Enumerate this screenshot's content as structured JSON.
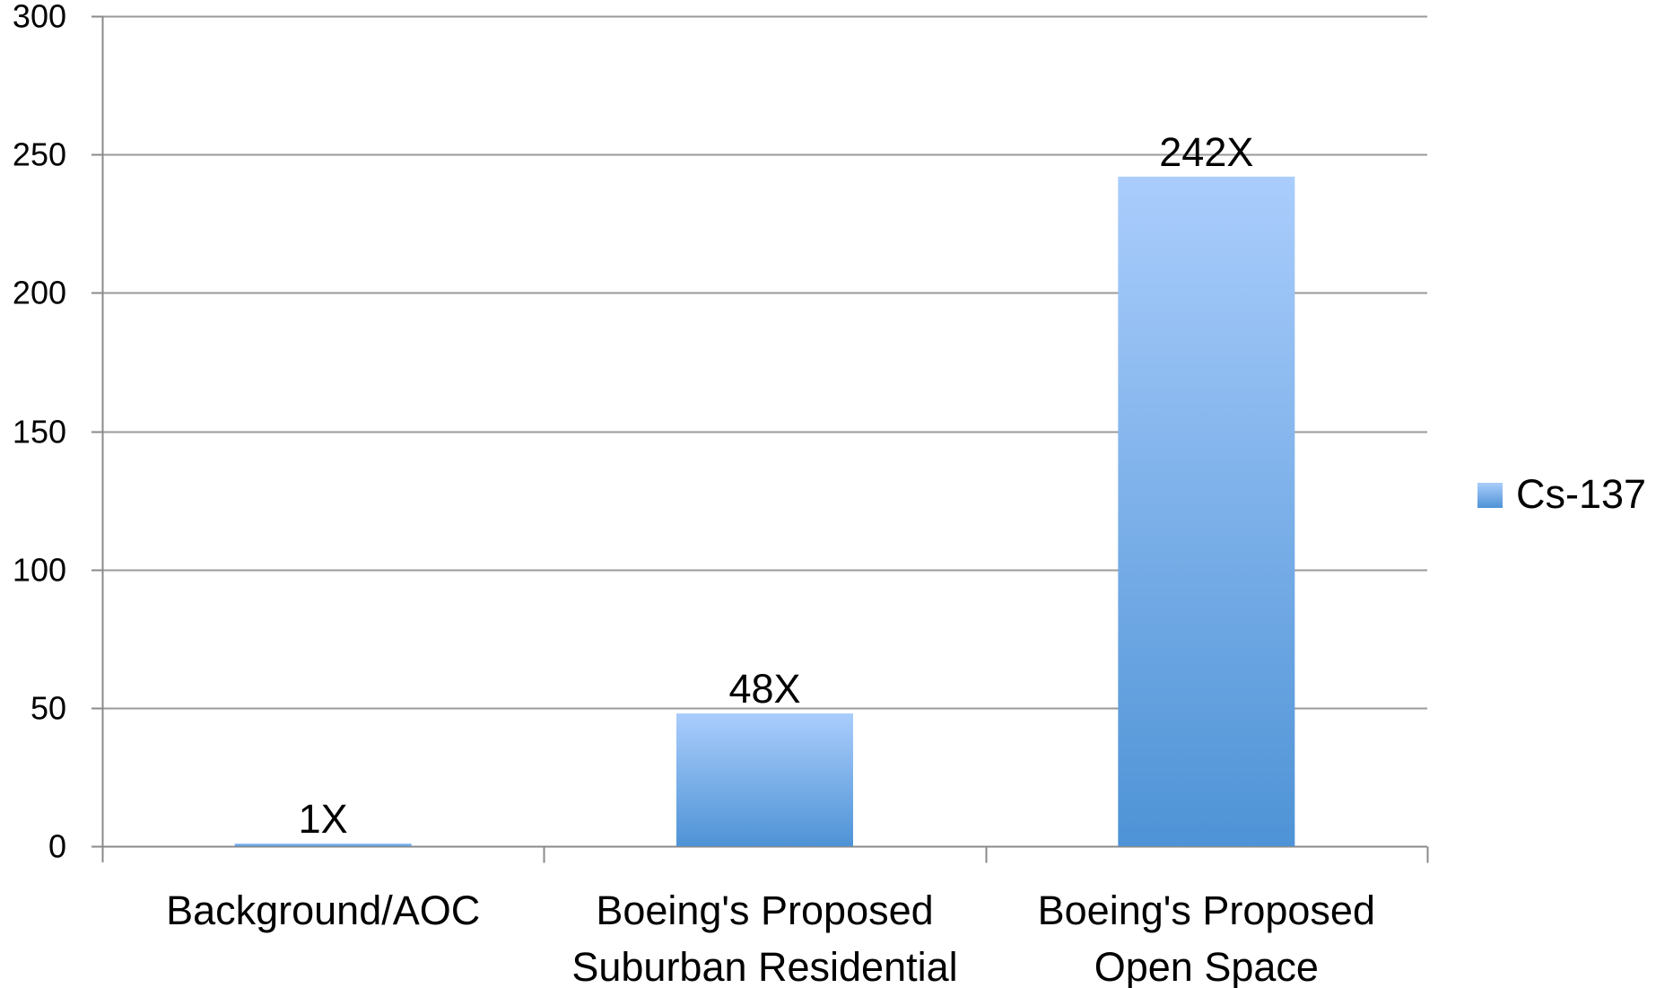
{
  "chart_data": {
    "type": "bar",
    "categories": [
      [
        "Background/AOC"
      ],
      [
        "Boeing's Proposed",
        "Suburban Residential"
      ],
      [
        "Boeing's Proposed",
        "Open Space"
      ]
    ],
    "values": [
      1,
      48,
      242
    ],
    "data_labels": [
      "1X",
      "48X",
      "242X"
    ],
    "series": [
      {
        "name": "Cs-137",
        "values": [
          1,
          48,
          242
        ]
      }
    ],
    "title": "",
    "xlabel": "",
    "ylabel": "",
    "ylim": [
      0,
      300
    ],
    "yticks": [
      0,
      50,
      100,
      150,
      200,
      250,
      300
    ],
    "ytick_labels": [
      "0",
      "50",
      "100",
      "150",
      "200",
      "250",
      "300"
    ],
    "grid": true,
    "legend_position": "right",
    "colors": {
      "bar_top": "#aacdfc",
      "bar_bottom": "#4e93d6",
      "grid": "#9a9a9a",
      "axis": "#8a8a8a",
      "text": "#000000"
    }
  }
}
